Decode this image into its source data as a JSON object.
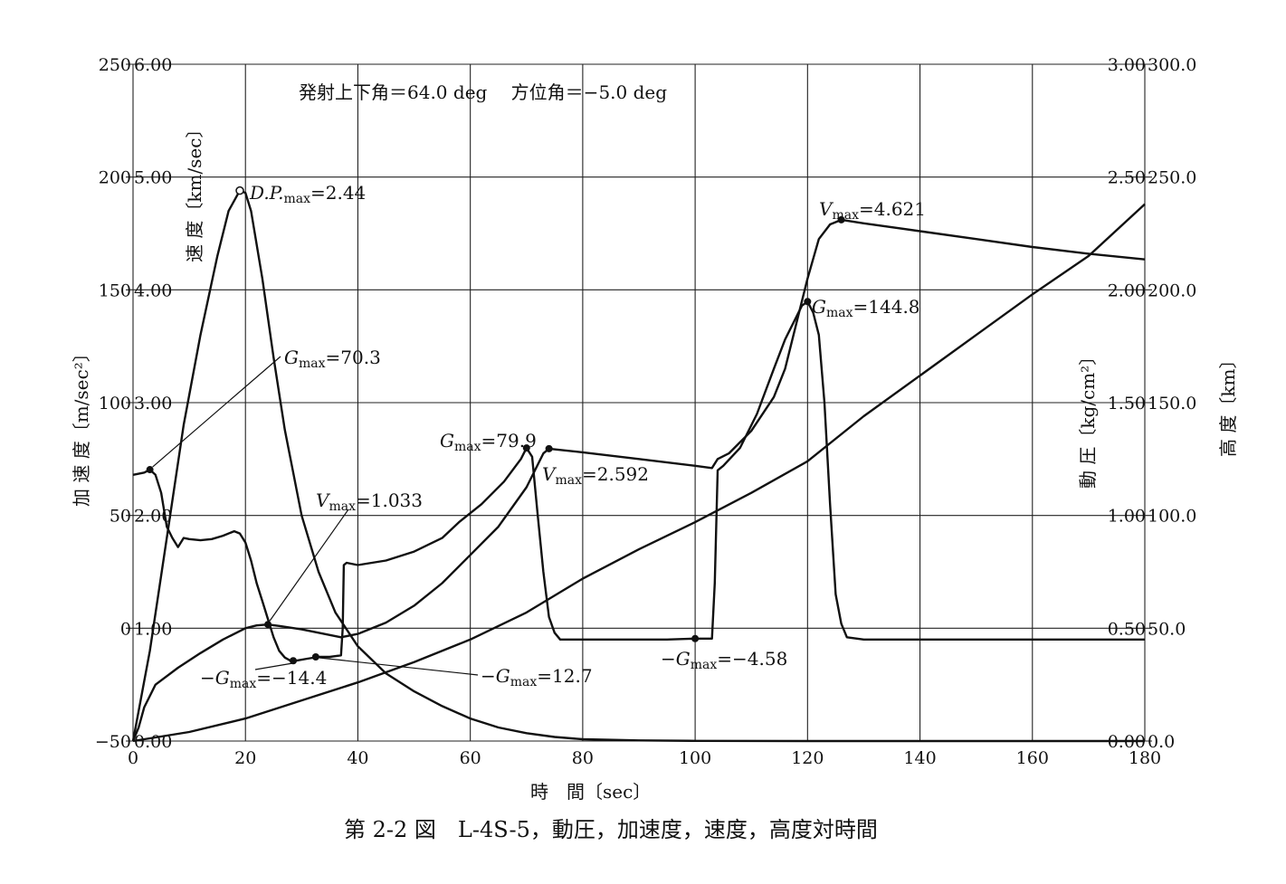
{
  "chart_data": {
    "type": "line",
    "subtitle": "発射上下角＝64.0 deg　 方位角＝−5.0 deg",
    "caption": "第 2-2 図　L-4S-5，動圧，加速度，速度，高度対時間",
    "xlabel": "時　間〔sec〕",
    "xlim": [
      0,
      180
    ],
    "x_ticks": [
      "0",
      "20",
      "40",
      "60",
      "80",
      "100",
      "120",
      "140",
      "160",
      "180"
    ],
    "axes": {
      "acceleration": {
        "label": "加 速 度〔m/sec²〕",
        "range": [
          -50,
          250
        ],
        "ticks": [
          "−50",
          "0",
          "50",
          "100",
          "150",
          "200",
          "250"
        ]
      },
      "velocity": {
        "label": "速 度〔km/sec〕",
        "range": [
          0,
          6
        ],
        "ticks": [
          "0.00",
          "1.00",
          "2.00",
          "3.00",
          "4.00",
          "5.00",
          "6.00"
        ]
      },
      "dynamic_pressure": {
        "label": "動 圧〔kg/cm²〕",
        "range": [
          0,
          3
        ],
        "ticks": [
          "0.00",
          "0.50",
          "1.00",
          "1.50",
          "2.00",
          "2.50",
          "3.00"
        ]
      },
      "altitude": {
        "label": "高 度〔km〕",
        "range": [
          0,
          300
        ],
        "ticks": [
          "0.0",
          "50.0",
          "100.0",
          "150.0",
          "200.0",
          "250.0",
          "300.0"
        ]
      }
    },
    "grid": true,
    "series": [
      {
        "axis": "acceleration",
        "points": [
          [
            0,
            68
          ],
          [
            2,
            69
          ],
          [
            3,
            70.3
          ],
          [
            4,
            68
          ],
          [
            5,
            60
          ],
          [
            6,
            45
          ],
          [
            7,
            40
          ],
          [
            8,
            36
          ],
          [
            9,
            40
          ],
          [
            10,
            39.5
          ],
          [
            12,
            39
          ],
          [
            14,
            39.5
          ],
          [
            16,
            41
          ],
          [
            18,
            43
          ],
          [
            19,
            42
          ],
          [
            20,
            38
          ],
          [
            21,
            30
          ],
          [
            22,
            20
          ],
          [
            23,
            12
          ],
          [
            24,
            4
          ],
          [
            25,
            -4
          ],
          [
            26,
            -10
          ],
          [
            27,
            -13
          ],
          [
            28,
            -14.4
          ],
          [
            29,
            -14.4
          ],
          [
            31,
            -13.5
          ],
          [
            33,
            -12.7
          ],
          [
            35,
            -12.7
          ],
          [
            37,
            -12
          ],
          [
            37.3,
            0
          ],
          [
            37.5,
            28
          ],
          [
            38,
            29
          ],
          [
            40,
            28
          ],
          [
            45,
            30
          ],
          [
            50,
            34
          ],
          [
            55,
            40
          ],
          [
            58,
            47
          ],
          [
            62,
            55
          ],
          [
            66,
            65
          ],
          [
            69,
            75
          ],
          [
            70,
            79.9
          ],
          [
            71,
            76
          ],
          [
            72,
            50
          ],
          [
            73,
            25
          ],
          [
            74,
            5
          ],
          [
            75,
            -2
          ],
          [
            76,
            -5
          ],
          [
            78,
            -5
          ],
          [
            85,
            -5
          ],
          [
            95,
            -5
          ],
          [
            100,
            -4.58
          ],
          [
            103,
            -4.58
          ],
          [
            103.5,
            20
          ],
          [
            104,
            70
          ],
          [
            105,
            72
          ],
          [
            108,
            80
          ],
          [
            111,
            95
          ],
          [
            114,
            115
          ],
          [
            116,
            128
          ],
          [
            118,
            138
          ],
          [
            119,
            143
          ],
          [
            120,
            144.8
          ],
          [
            121,
            140
          ],
          [
            122,
            130
          ],
          [
            123,
            100
          ],
          [
            124,
            55
          ],
          [
            125,
            15
          ],
          [
            126,
            2
          ],
          [
            127,
            -4
          ],
          [
            130,
            -5
          ],
          [
            140,
            -5
          ],
          [
            160,
            -5
          ],
          [
            180,
            -5
          ]
        ]
      },
      {
        "axis": "velocity",
        "points": [
          [
            0,
            0
          ],
          [
            1,
            0.12
          ],
          [
            2,
            0.3
          ],
          [
            4,
            0.5
          ],
          [
            8,
            0.65
          ],
          [
            12,
            0.78
          ],
          [
            16,
            0.9
          ],
          [
            20,
            1.0
          ],
          [
            22,
            1.025
          ],
          [
            24,
            1.033
          ],
          [
            26,
            1.02
          ],
          [
            30,
            0.99
          ],
          [
            34,
            0.95
          ],
          [
            37,
            0.92
          ],
          [
            40,
            0.95
          ],
          [
            45,
            1.05
          ],
          [
            50,
            1.2
          ],
          [
            55,
            1.4
          ],
          [
            60,
            1.65
          ],
          [
            65,
            1.9
          ],
          [
            70,
            2.25
          ],
          [
            73,
            2.55
          ],
          [
            74,
            2.592
          ],
          [
            80,
            2.56
          ],
          [
            90,
            2.5
          ],
          [
            100,
            2.44
          ],
          [
            103,
            2.42
          ],
          [
            104,
            2.5
          ],
          [
            106,
            2.55
          ],
          [
            110,
            2.75
          ],
          [
            114,
            3.05
          ],
          [
            116,
            3.3
          ],
          [
            118,
            3.7
          ],
          [
            120,
            4.1
          ],
          [
            122,
            4.45
          ],
          [
            124,
            4.58
          ],
          [
            125,
            4.6
          ],
          [
            126,
            4.621
          ],
          [
            130,
            4.59
          ],
          [
            140,
            4.52
          ],
          [
            150,
            4.45
          ],
          [
            160,
            4.38
          ],
          [
            170,
            4.32
          ],
          [
            180,
            4.27
          ]
        ]
      },
      {
        "axis": "dynamic_pressure",
        "points": [
          [
            0,
            0
          ],
          [
            3,
            0.4
          ],
          [
            6,
            0.9
          ],
          [
            9,
            1.4
          ],
          [
            12,
            1.8
          ],
          [
            15,
            2.15
          ],
          [
            17,
            2.35
          ],
          [
            19,
            2.44
          ],
          [
            20,
            2.43
          ],
          [
            21,
            2.35
          ],
          [
            23,
            2.05
          ],
          [
            25,
            1.7
          ],
          [
            27,
            1.38
          ],
          [
            30,
            1.0
          ],
          [
            33,
            0.75
          ],
          [
            36,
            0.57
          ],
          [
            40,
            0.42
          ],
          [
            45,
            0.3
          ],
          [
            50,
            0.22
          ],
          [
            55,
            0.155
          ],
          [
            60,
            0.1
          ],
          [
            65,
            0.06
          ],
          [
            70,
            0.035
          ],
          [
            75,
            0.018
          ],
          [
            80,
            0.008
          ],
          [
            90,
            0.003
          ],
          [
            100,
            0.001
          ],
          [
            120,
            0
          ],
          [
            180,
            0
          ]
        ]
      },
      {
        "axis": "altitude",
        "points": [
          [
            0,
            0
          ],
          [
            10,
            4
          ],
          [
            20,
            10
          ],
          [
            30,
            18
          ],
          [
            40,
            26
          ],
          [
            50,
            35
          ],
          [
            60,
            45
          ],
          [
            70,
            57
          ],
          [
            80,
            72
          ],
          [
            90,
            85
          ],
          [
            100,
            97
          ],
          [
            110,
            110
          ],
          [
            120,
            124
          ],
          [
            130,
            144
          ],
          [
            140,
            162
          ],
          [
            150,
            180
          ],
          [
            160,
            198
          ],
          [
            170,
            215
          ],
          [
            180,
            238
          ]
        ]
      }
    ],
    "annotations": [
      {
        "label": "D.P.",
        "sub": "max",
        "value": "=2.44"
      },
      {
        "label": "G",
        "sub": "max",
        "value": "=70.3"
      },
      {
        "label": "V",
        "sub": "max",
        "value": "=1.033"
      },
      {
        "label": "−G",
        "sub": "max",
        "value": "=−14.4"
      },
      {
        "label": "−G",
        "sub": "max",
        "value": "=12.7"
      },
      {
        "label": "G",
        "sub": "max",
        "value": "=79.9"
      },
      {
        "label": "V",
        "sub": "max",
        "value": "=2.592"
      },
      {
        "label": "−G",
        "sub": "max",
        "value": "=−4.58"
      },
      {
        "label": "V",
        "sub": "max",
        "value": "=4.621"
      },
      {
        "label": "G",
        "sub": "max",
        "value": "=144.8"
      }
    ]
  }
}
